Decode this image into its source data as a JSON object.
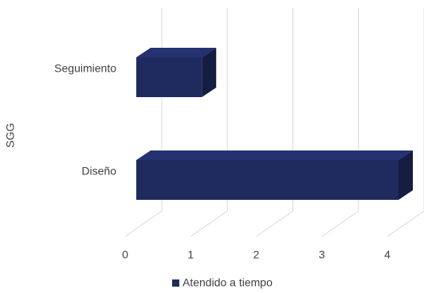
{
  "chart_data": {
    "type": "bar3d",
    "orientation": "horizontal",
    "y_label": "SGG",
    "categories": [
      "Seguimiento",
      "Diseño"
    ],
    "series": [
      {
        "name": "Atendido a tiempo",
        "color": "#1f2a5e",
        "values": [
          1,
          4
        ]
      }
    ],
    "xlim": [
      0,
      4
    ],
    "xticks": [
      0,
      1,
      2,
      3,
      4
    ],
    "grid": true
  }
}
